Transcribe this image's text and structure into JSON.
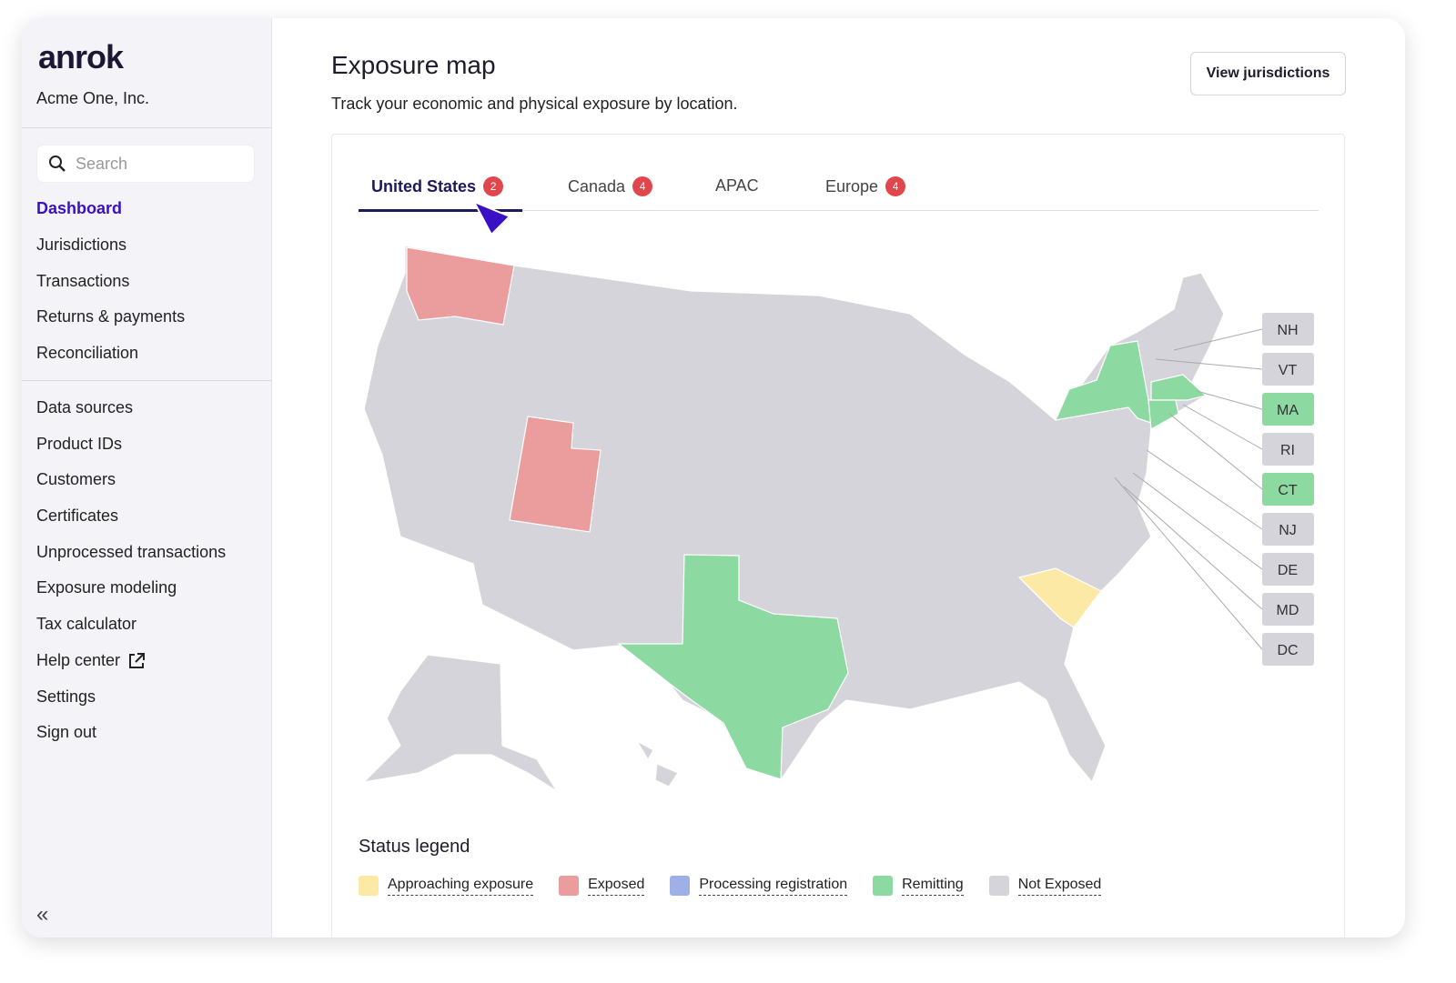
{
  "sidebar": {
    "logo": "anrok",
    "org": "Acme One, Inc.",
    "search_placeholder": "Search",
    "items": [
      "Dashboard",
      "Jurisdictions",
      "Transactions",
      "Returns & payments",
      "Reconciliation"
    ],
    "items2": [
      "Data sources",
      "Product IDs",
      "Customers",
      "Certificates",
      "Unprocessed transactions",
      "Exposure modeling",
      "Tax calculator",
      "Help center",
      "Settings",
      "Sign out"
    ],
    "collapse": "«"
  },
  "header": {
    "title": "Exposure map",
    "subtitle": "Track your economic and physical exposure by location.",
    "view_button": "View jurisdictions"
  },
  "tabs": [
    {
      "label": "United States",
      "badge": "2"
    },
    {
      "label": "Canada",
      "badge": "4"
    },
    {
      "label": "APAC"
    },
    {
      "label": "Europe",
      "badge": "4"
    }
  ],
  "map": {
    "highlighted": {
      "WA": "Exposed",
      "UT": "Exposed",
      "TX": "Remitting",
      "SC": "Approaching exposure",
      "NY": "Remitting",
      "MA": "Remitting",
      "CT": "Remitting"
    },
    "small_states": [
      {
        "code": "NH",
        "status": "Not Exposed"
      },
      {
        "code": "VT",
        "status": "Not Exposed"
      },
      {
        "code": "MA",
        "status": "Remitting"
      },
      {
        "code": "RI",
        "status": "Not Exposed"
      },
      {
        "code": "CT",
        "status": "Remitting"
      },
      {
        "code": "NJ",
        "status": "Not Exposed"
      },
      {
        "code": "DE",
        "status": "Not Exposed"
      },
      {
        "code": "MD",
        "status": "Not Exposed"
      },
      {
        "code": "DC",
        "status": "Not Exposed"
      }
    ]
  },
  "legend": {
    "title": "Status legend",
    "items": [
      {
        "label": "Approaching exposure",
        "color": "#fde9a6"
      },
      {
        "label": "Exposed",
        "color": "#eb9c9c"
      },
      {
        "label": "Processing registration",
        "color": "#9fb0e6"
      },
      {
        "label": "Remitting",
        "color": "#8dd9a2"
      },
      {
        "label": "Not Exposed",
        "color": "#d4d4da"
      }
    ]
  }
}
